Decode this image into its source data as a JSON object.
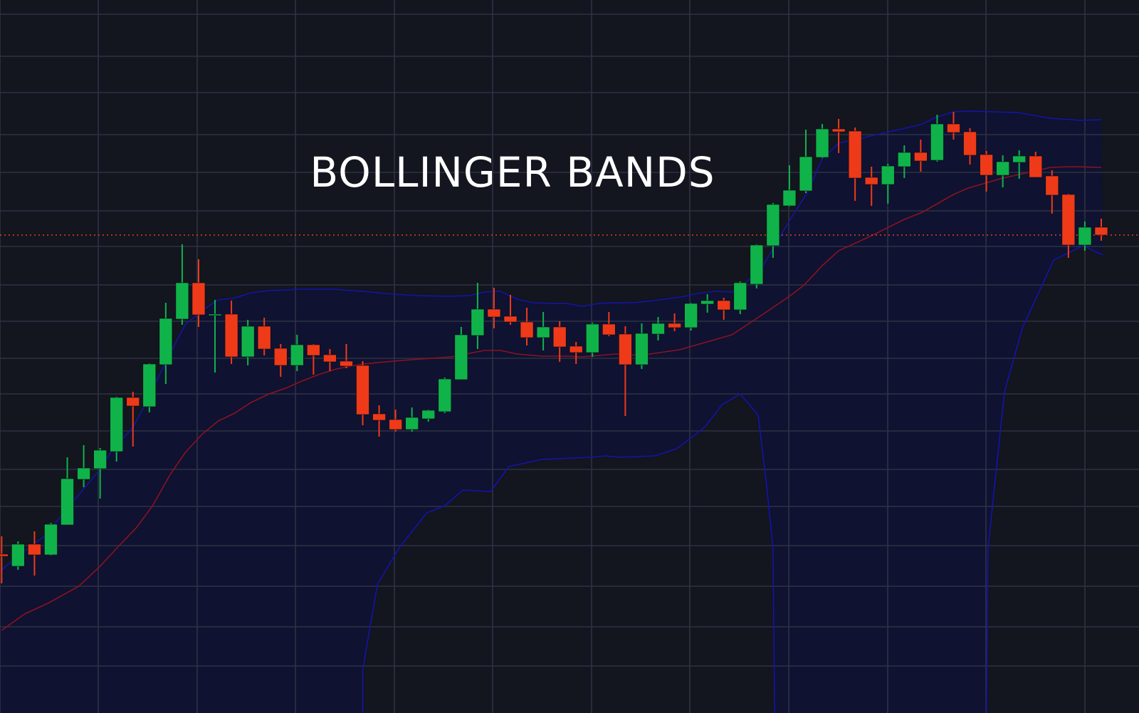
{
  "chart_data": {
    "type": "candlestick",
    "title": "BOLLINGER BANDS",
    "xlabel": "",
    "ylabel": "",
    "grid": true,
    "ylim": [
      -8,
      993
    ],
    "xlim": [
      -0.1,
      69.3
    ],
    "colors": {
      "background": "#13151f",
      "grid": "#2f3244",
      "up": "#10b34a",
      "down": "#ee3a19",
      "band_outer": "#1414a8",
      "band_middle": "#8a1224",
      "band_fill": "#0f1230",
      "last_price_line": "#e8401c",
      "title": "#ffffff"
    },
    "candle_fields": [
      "open",
      "high",
      "low",
      "close"
    ],
    "candles": [
      [
        215,
        240,
        174,
        212
      ],
      [
        198,
        233,
        193,
        229
      ],
      [
        229,
        247,
        185,
        214
      ],
      [
        214,
        259,
        213,
        257
      ],
      [
        256,
        351,
        256,
        321
      ],
      [
        320,
        368,
        309,
        336
      ],
      [
        335,
        364,
        293,
        361
      ],
      [
        359,
        436,
        345,
        435
      ],
      [
        435,
        443,
        366,
        423
      ],
      [
        422,
        483,
        414,
        482
      ],
      [
        481,
        568,
        454,
        546
      ],
      [
        545,
        650,
        537,
        596
      ],
      [
        596,
        629,
        534,
        551
      ],
      [
        551,
        572,
        470,
        552
      ],
      [
        552,
        571,
        482,
        492
      ],
      [
        492,
        544,
        480,
        535
      ],
      [
        535,
        547,
        494,
        503
      ],
      [
        504,
        510,
        464,
        480
      ],
      [
        480,
        523,
        472,
        509
      ],
      [
        509,
        510,
        467,
        494
      ],
      [
        495,
        503,
        472,
        485
      ],
      [
        486,
        510,
        476,
        479
      ],
      [
        480,
        486,
        396,
        411
      ],
      [
        412,
        424,
        380,
        403
      ],
      [
        404,
        418,
        387,
        390
      ],
      [
        390,
        421,
        387,
        407
      ],
      [
        405,
        418,
        401,
        417
      ],
      [
        415,
        463,
        413,
        461
      ],
      [
        460,
        534,
        460,
        523
      ],
      [
        522,
        596,
        503,
        559
      ],
      [
        559,
        589,
        532,
        548
      ],
      [
        549,
        579,
        537,
        541
      ],
      [
        541,
        561,
        508,
        519
      ],
      [
        519,
        555,
        501,
        534
      ],
      [
        534,
        542,
        485,
        506
      ],
      [
        507,
        513,
        482,
        498
      ],
      [
        498,
        540,
        492,
        538
      ],
      [
        538,
        555,
        521,
        523
      ],
      [
        524,
        535,
        409,
        481
      ],
      [
        481,
        539,
        475,
        525
      ],
      [
        524,
        548,
        515,
        539
      ],
      [
        539,
        553,
        528,
        533
      ],
      [
        533,
        568,
        529,
        567
      ],
      [
        566,
        580,
        554,
        571
      ],
      [
        571,
        575,
        544,
        558
      ],
      [
        558,
        598,
        552,
        596
      ],
      [
        594,
        650,
        588,
        649
      ],
      [
        648,
        708,
        631,
        706
      ],
      [
        704,
        761,
        703,
        726
      ],
      [
        725,
        811,
        722,
        773
      ],
      [
        772,
        819,
        771,
        812
      ],
      [
        812,
        826,
        778,
        808
      ],
      [
        809,
        814,
        711,
        743
      ],
      [
        744,
        759,
        704,
        734
      ],
      [
        734,
        763,
        707,
        760
      ],
      [
        759,
        789,
        743,
        779
      ],
      [
        779,
        797,
        752,
        767
      ],
      [
        768,
        832,
        766,
        819
      ],
      [
        819,
        836,
        797,
        807
      ],
      [
        808,
        813,
        762,
        775
      ],
      [
        776,
        781,
        724,
        747
      ],
      [
        747,
        775,
        730,
        766
      ],
      [
        765,
        782,
        742,
        774
      ],
      [
        774,
        780,
        744,
        744
      ],
      [
        746,
        754,
        693,
        719
      ],
      [
        720,
        721,
        631,
        649
      ],
      [
        649,
        682,
        641,
        674
      ],
      [
        674,
        686,
        655,
        663
      ]
    ],
    "upper_band": [
      [
        0,
        193
      ],
      [
        1.3,
        218
      ],
      [
        2.6,
        240
      ],
      [
        4.4,
        290
      ],
      [
        6.1,
        337
      ],
      [
        6.7,
        360
      ],
      [
        8,
        393
      ],
      [
        8.7,
        423
      ],
      [
        9.9,
        480
      ],
      [
        11.2,
        538
      ],
      [
        12.6,
        563
      ],
      [
        13.2,
        572
      ],
      [
        14.1,
        574
      ],
      [
        15.2,
        582
      ],
      [
        16.3,
        585
      ],
      [
        18.3,
        587
      ],
      [
        20.2,
        587
      ],
      [
        22.5,
        583
      ],
      [
        23.3,
        581
      ],
      [
        25.3,
        578
      ],
      [
        27.3,
        577
      ],
      [
        28.5,
        578
      ],
      [
        29.4,
        583
      ],
      [
        30.4,
        584
      ],
      [
        31.4,
        573
      ],
      [
        32.4,
        568
      ],
      [
        33.5,
        567
      ],
      [
        34.4,
        567
      ],
      [
        35.4,
        563
      ],
      [
        36.4,
        567
      ],
      [
        37.4,
        568
      ],
      [
        38.4,
        568
      ],
      [
        39.4,
        570
      ],
      [
        40.4,
        573
      ],
      [
        41.4,
        576
      ],
      [
        42.4,
        581
      ],
      [
        43.5,
        584
      ],
      [
        44.5,
        583
      ],
      [
        45,
        588
      ],
      [
        46.4,
        620
      ],
      [
        48,
        683
      ],
      [
        49.1,
        723
      ],
      [
        50,
        770
      ],
      [
        51,
        792
      ],
      [
        52,
        797
      ],
      [
        53.9,
        807
      ],
      [
        56,
        818
      ],
      [
        56.9,
        828
      ],
      [
        58,
        836
      ],
      [
        58.9,
        837
      ],
      [
        61.9,
        835
      ],
      [
        63.9,
        827
      ],
      [
        65.8,
        824
      ],
      [
        67,
        825
      ]
    ],
    "middle_band": [
      [
        0,
        108
      ],
      [
        1.4,
        131
      ],
      [
        2.9,
        147
      ],
      [
        4.7,
        170
      ],
      [
        6,
        198
      ],
      [
        7.2,
        228
      ],
      [
        8.2,
        252
      ],
      [
        9.2,
        283
      ],
      [
        10.3,
        328
      ],
      [
        11.2,
        358
      ],
      [
        12.2,
        383
      ],
      [
        13.2,
        402
      ],
      [
        14.2,
        413
      ],
      [
        15.2,
        428
      ],
      [
        16.3,
        440
      ],
      [
        17.3,
        448
      ],
      [
        18.3,
        458
      ],
      [
        19.3,
        467
      ],
      [
        20.4,
        475
      ],
      [
        22,
        482
      ],
      [
        24.4,
        487
      ],
      [
        27.4,
        492
      ],
      [
        29.4,
        501
      ],
      [
        30.4,
        501
      ],
      [
        31.4,
        496
      ],
      [
        32.9,
        493
      ],
      [
        34.4,
        493
      ],
      [
        35.4,
        492
      ],
      [
        37.4,
        496
      ],
      [
        38.9,
        494
      ],
      [
        41.3,
        502
      ],
      [
        44.5,
        523
      ],
      [
        46.4,
        552
      ],
      [
        48,
        577
      ],
      [
        48.9,
        593
      ],
      [
        50,
        620
      ],
      [
        51,
        641
      ],
      [
        53,
        662
      ],
      [
        55,
        685
      ],
      [
        56.1,
        695
      ],
      [
        58,
        720
      ],
      [
        58.9,
        729
      ],
      [
        61,
        743
      ],
      [
        63,
        753
      ],
      [
        63.9,
        758
      ],
      [
        65.2,
        759
      ],
      [
        67,
        758
      ]
    ],
    "lower_band": [
      [
        [
          22,
          -8
        ],
        [
          22,
          53
        ],
        [
          22.9,
          173
        ],
        [
          24.2,
          223
        ],
        [
          25.9,
          273
        ],
        [
          27,
          283
        ],
        [
          28.1,
          305
        ],
        [
          29.8,
          303
        ],
        [
          30.9,
          338
        ],
        [
          32.9,
          348
        ],
        [
          35.9,
          351
        ],
        [
          36.8,
          353
        ],
        [
          37.7,
          351
        ],
        [
          39.8,
          353
        ],
        [
          41.1,
          363
        ],
        [
          42,
          378
        ],
        [
          42.9,
          395
        ],
        [
          43.9,
          425
        ],
        [
          45,
          440
        ],
        [
          46.1,
          410
        ],
        [
          46.6,
          313
        ],
        [
          47,
          223
        ],
        [
          47.1,
          -8
        ]
      ],
      [
        [
          60,
          -8
        ],
        [
          60.1,
          223
        ],
        [
          61.1,
          443
        ],
        [
          62.2,
          533
        ],
        [
          63.3,
          588
        ],
        [
          64.1,
          628
        ],
        [
          65.9,
          648
        ],
        [
          67.1,
          635
        ]
      ]
    ],
    "last_price": 663
  }
}
